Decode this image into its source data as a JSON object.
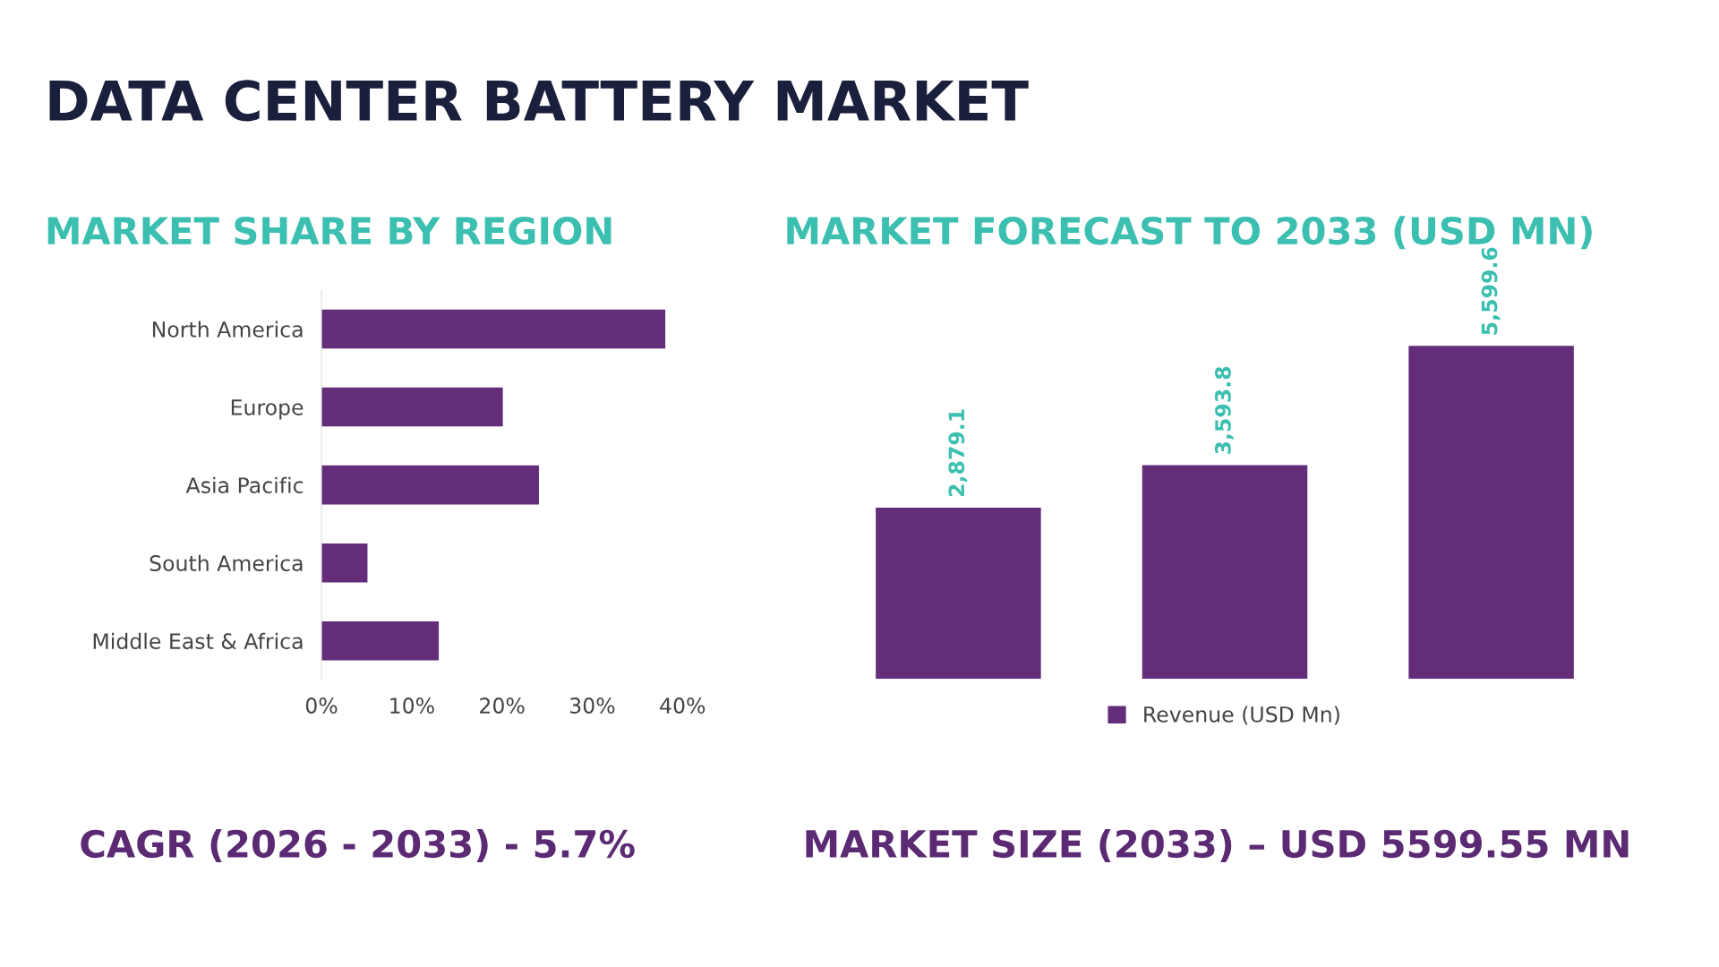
{
  "chart_data": [
    {
      "type": "bar",
      "orientation": "horizontal",
      "title": "DATA CENTER BATTERY MARKET",
      "subtitle": "MARKET SHARE BY REGION",
      "categories": [
        "North America",
        "Europe",
        "Asia Pacific",
        "South America",
        "Middle East & Africa"
      ],
      "values": [
        38.1,
        20.1,
        24.1,
        5.1,
        13.0
      ],
      "color": "#642d7a",
      "xlim": [
        0,
        40
      ],
      "xticks": [
        {
          "value": 0,
          "label": "0%"
        },
        {
          "value": 10,
          "label": "10%"
        },
        {
          "value": 20,
          "label": "20%"
        },
        {
          "value": 30,
          "label": "30%"
        },
        {
          "value": 40,
          "label": "40%"
        }
      ],
      "grid": false,
      "legend": false,
      "annotations": [
        "CAGR (2026 - 2033) - 5.7%"
      ]
    },
    {
      "type": "bar",
      "title": "MARKET FORECAST TO 2033 (USD MN)",
      "categories": [
        null,
        null,
        null
      ],
      "series": [
        {
          "name": "Revenue (USD Mn)",
          "color": "#642d7a",
          "values": [
            2879.1,
            3593.8,
            5599.6
          ],
          "value_labels": [
            "2,879.1",
            "3,593.8",
            "5,599.6"
          ]
        }
      ],
      "legend": "bottom",
      "grid": false,
      "annotations": [
        "MARKET SIZE (2033) – USD 5599.55 MN"
      ]
    }
  ]
}
